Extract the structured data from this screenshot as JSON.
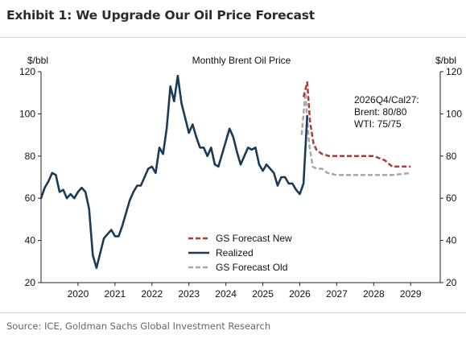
{
  "header": {
    "title": "Exhibit 1: We Upgrade Our Oil Price Forecast"
  },
  "footer": {
    "source": "Source: ICE, Goldman Sachs Global Investment Research"
  },
  "chart_data": {
    "type": "line",
    "title": "Monthly Brent Oil Price",
    "y_unit_left": "$/bbl",
    "y_unit_right": "$/bbl",
    "ylim": [
      20,
      120
    ],
    "yticks": [
      20,
      40,
      60,
      80,
      100,
      120
    ],
    "xlim": [
      2019.0,
      2029.8
    ],
    "xticks": [
      2020,
      2021,
      2022,
      2023,
      2024,
      2025,
      2026,
      2027,
      2028,
      2029
    ],
    "annotation": [
      "2026Q4/Cal27:",
      "Brent: 80/80",
      "WTI: 75/75"
    ],
    "legend_position": "bottom-center",
    "grid": false,
    "series": [
      {
        "name": "GS Forecast New",
        "style": "dashed",
        "color": "#b03a3a",
        "x": [
          2026.1,
          2026.2,
          2026.28,
          2026.37,
          2026.45,
          2026.6,
          2026.8,
          2027.0,
          2027.5,
          2028.0,
          2028.3,
          2028.5,
          2029.0
        ],
        "y": [
          108,
          115,
          96,
          86,
          83,
          81,
          80,
          80,
          80,
          80,
          78,
          75,
          75
        ]
      },
      {
        "name": "Realized",
        "style": "solid",
        "color": "#1b3a56",
        "x": [
          2019.0,
          2019.1,
          2019.2,
          2019.3,
          2019.4,
          2019.5,
          2019.6,
          2019.7,
          2019.8,
          2019.9,
          2020.0,
          2020.1,
          2020.2,
          2020.3,
          2020.4,
          2020.5,
          2020.6,
          2020.7,
          2020.8,
          2020.9,
          2021.0,
          2021.1,
          2021.2,
          2021.3,
          2021.4,
          2021.5,
          2021.6,
          2021.7,
          2021.8,
          2021.9,
          2022.0,
          2022.1,
          2022.2,
          2022.3,
          2022.4,
          2022.5,
          2022.6,
          2022.7,
          2022.8,
          2022.9,
          2023.0,
          2023.1,
          2023.2,
          2023.3,
          2023.4,
          2023.5,
          2023.6,
          2023.7,
          2023.8,
          2023.9,
          2024.0,
          2024.1,
          2024.2,
          2024.3,
          2024.4,
          2024.5,
          2024.6,
          2024.7,
          2024.8,
          2024.9,
          2025.0,
          2025.1,
          2025.2,
          2025.3,
          2025.4,
          2025.5,
          2025.6,
          2025.7,
          2025.8,
          2025.9,
          2026.0,
          2026.1,
          2026.2
        ],
        "y": [
          60,
          65,
          68,
          72,
          71,
          63,
          64,
          60,
          62,
          60,
          63,
          65,
          63,
          55,
          33,
          27,
          34,
          41,
          43,
          45,
          42,
          42,
          47,
          53,
          59,
          63,
          66,
          66,
          70,
          74,
          75,
          72,
          84,
          81,
          93,
          113,
          106,
          118,
          105,
          98,
          91,
          95,
          89,
          84,
          84,
          80,
          84,
          76,
          75,
          81,
          87,
          93,
          89,
          82,
          76,
          80,
          84,
          83,
          84,
          76,
          73,
          76,
          74,
          72,
          66,
          70,
          70,
          67,
          67,
          64,
          62,
          67,
          99
        ]
      },
      {
        "name": "GS Forecast Old",
        "style": "dashed",
        "color": "#a8a8a8",
        "x": [
          2026.05,
          2026.15,
          2026.25,
          2026.35,
          2026.45,
          2026.6,
          2026.75,
          2027.0,
          2027.5,
          2028.0,
          2028.5,
          2029.0
        ],
        "y": [
          90,
          110,
          86,
          75,
          74,
          74,
          72,
          71,
          71,
          71,
          71,
          72
        ]
      }
    ]
  }
}
